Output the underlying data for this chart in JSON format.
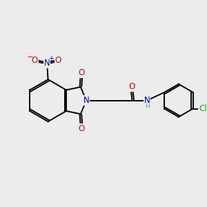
{
  "bg_color": "#ececec",
  "atom_colors": {
    "C": "#000000",
    "N": "#0000ee",
    "O": "#ee0000",
    "Cl": "#22aa22",
    "H": "#5f9ea0"
  },
  "bond_color": "#000000",
  "bond_width": 1.4,
  "font_size_atom": 8.5,
  "font_size_small": 7.0
}
